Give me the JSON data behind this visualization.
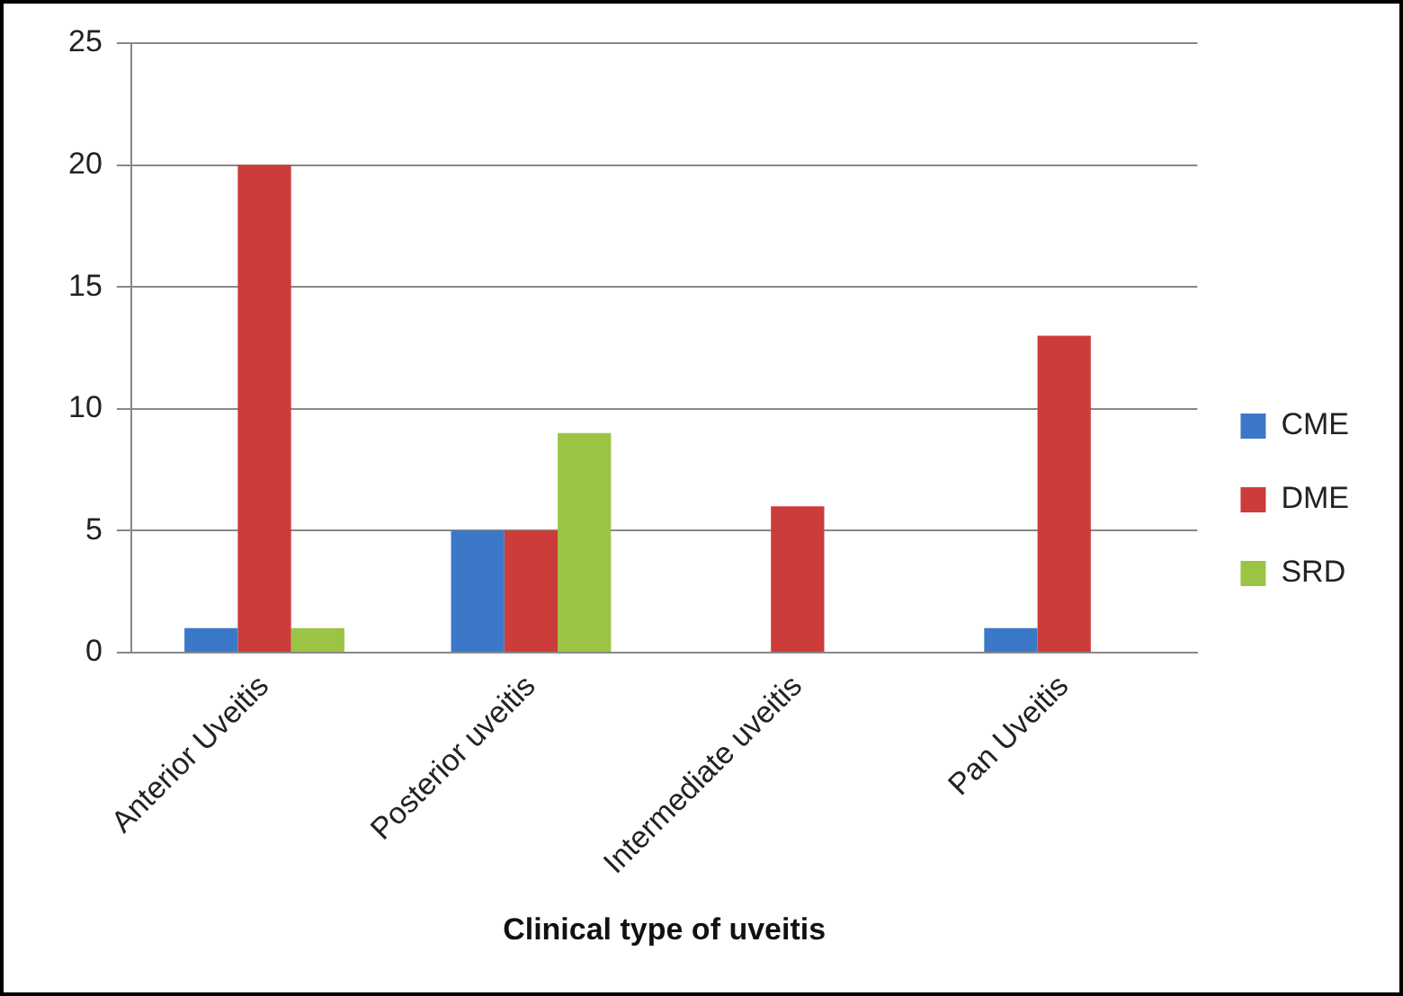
{
  "chart_data": {
    "type": "bar",
    "xlabel": "Clinical type of uveitis",
    "categories": [
      "Anterior Uveitis",
      "Posterior uveitis",
      "Intermediate uveitis",
      "Pan Uveitis"
    ],
    "series": [
      {
        "name": "CME",
        "color": "#3c78c8",
        "values": [
          1,
          5,
          0,
          1
        ]
      },
      {
        "name": "DME",
        "color": "#cc3c3a",
        "values": [
          20,
          5,
          6,
          13
        ]
      },
      {
        "name": "SRD",
        "color": "#9cc444",
        "values": [
          1,
          9,
          0,
          0
        ]
      }
    ],
    "ylim": [
      0,
      25
    ],
    "yticks": [
      0,
      5,
      10,
      15,
      20,
      25
    ],
    "grid": "y",
    "legend": "right"
  }
}
